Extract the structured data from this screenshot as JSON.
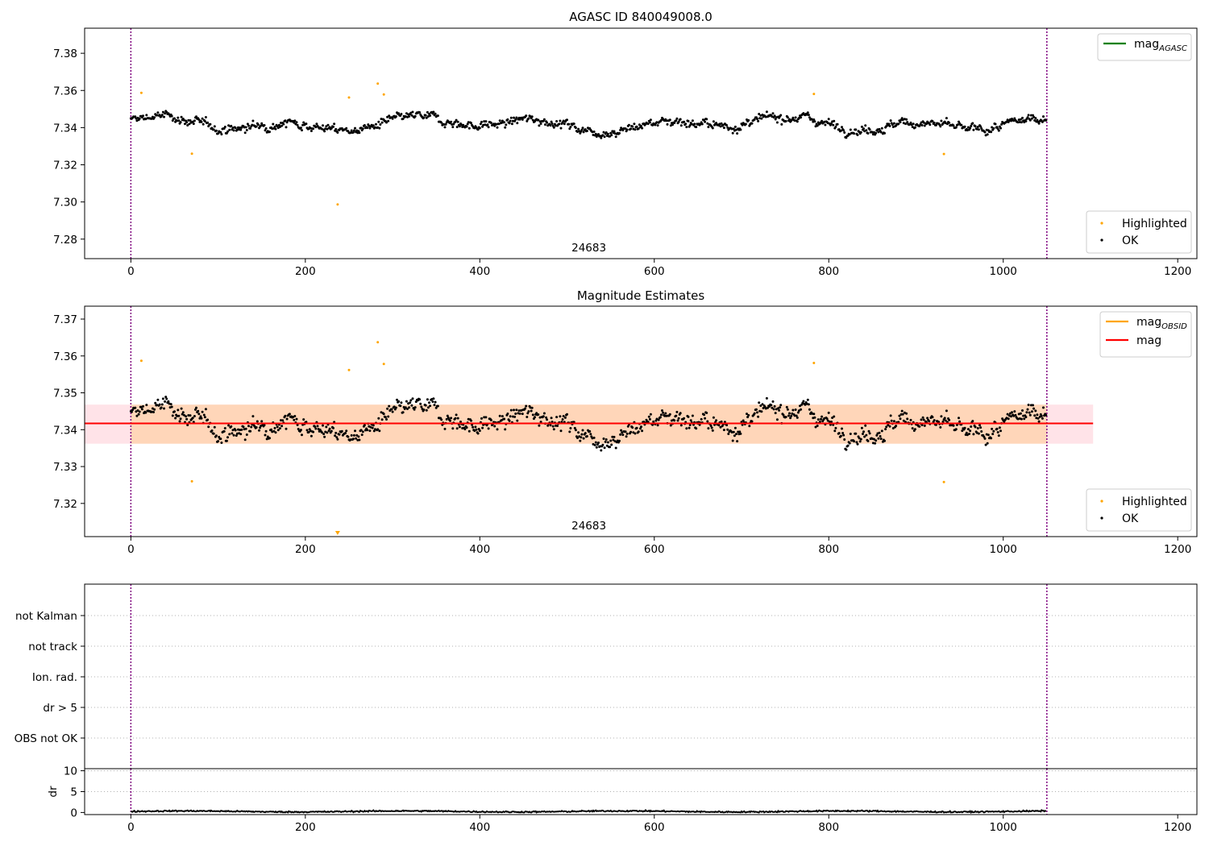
{
  "chart_data": [
    {
      "type": "scatter",
      "title": "AGASC ID 840049008.0",
      "xlim": [
        -53,
        1222
      ],
      "ylim": [
        7.2695,
        7.3935
      ],
      "xticks": [
        0,
        200,
        400,
        600,
        800,
        1000,
        1200
      ],
      "yticks": [
        7.28,
        7.3,
        7.32,
        7.34,
        7.36,
        7.38
      ],
      "obsid_label": "24683",
      "obsid_x": 525,
      "vlines": [
        0,
        1050
      ],
      "legend_lines": [
        {
          "label": "mag",
          "sub": "AGASC",
          "color": "#008000"
        }
      ],
      "legend_points": [
        {
          "label": "Highlighted",
          "color": "#ffa500"
        },
        {
          "label": "OK",
          "color": "#000000"
        }
      ],
      "highlighted": [
        [
          12,
          7.3587
        ],
        [
          70,
          7.326
        ],
        [
          237,
          7.2987
        ],
        [
          250,
          7.3562
        ],
        [
          283,
          7.3637
        ],
        [
          290,
          7.3578
        ],
        [
          783,
          7.3581
        ],
        [
          932,
          7.3258
        ]
      ],
      "series": {
        "name": "OK",
        "color": "#000000",
        "count": 1050,
        "baseline": 7.342,
        "noise": 0.0042
      }
    },
    {
      "type": "scatter",
      "title": "Magnitude Estimates",
      "xlim": [
        -53,
        1222
      ],
      "ylim": [
        7.311,
        7.3735
      ],
      "xticks": [
        0,
        200,
        400,
        600,
        800,
        1000,
        1200
      ],
      "yticks": [
        7.32,
        7.33,
        7.34,
        7.35,
        7.36,
        7.37
      ],
      "obsid_label": "24683",
      "obsid_x": 525,
      "vlines": [
        0,
        1050
      ],
      "mag_band": {
        "x": [
          -53,
          1103
        ],
        "y": [
          7.3362,
          7.3468
        ],
        "color": "#ffc0cb"
      },
      "obsid_band": {
        "x": [
          0,
          1050
        ],
        "y": [
          7.3362,
          7.3468
        ],
        "color": "#ffa500"
      },
      "mag_line": 7.3417,
      "legend_lines": [
        {
          "label": "mag",
          "sub": "OBSID",
          "color": "#ffa500"
        },
        {
          "label": "mag",
          "sub": "",
          "color": "#ff0000"
        }
      ],
      "legend_points": [
        {
          "label": "Highlighted",
          "color": "#ffa500"
        },
        {
          "label": "OK",
          "color": "#000000"
        }
      ],
      "highlighted": [
        [
          12,
          7.3587
        ],
        [
          70,
          7.326
        ],
        [
          250,
          7.3562
        ],
        [
          283,
          7.3637
        ],
        [
          290,
          7.3578
        ],
        [
          783,
          7.3581
        ],
        [
          932,
          7.3258
        ]
      ],
      "offscale_marker": {
        "x": 237,
        "y": 7.311
      },
      "series": {
        "name": "OK",
        "color": "#000000",
        "count": 1050,
        "baseline": 7.342,
        "noise": 0.0042
      }
    },
    {
      "type": "scatter",
      "title": "",
      "flag_labels": [
        "not Kalman",
        "not track",
        "Ion. rad.",
        "dr > 5",
        "OBS not OK"
      ],
      "vlines": [
        0,
        1050
      ]
    },
    {
      "type": "line",
      "title": "",
      "ylabel": "dr",
      "xlim": [
        -53,
        1222
      ],
      "ylim": [
        -0.5,
        10.5
      ],
      "xticks": [
        0,
        200,
        400,
        600,
        800,
        1000,
        1200
      ],
      "yticks": [
        0,
        5,
        10
      ],
      "vlines": [
        0,
        1050
      ],
      "series": {
        "name": "dr",
        "color": "#000000",
        "count": 1050,
        "baseline": 0.25,
        "noise": 0.12
      }
    }
  ]
}
